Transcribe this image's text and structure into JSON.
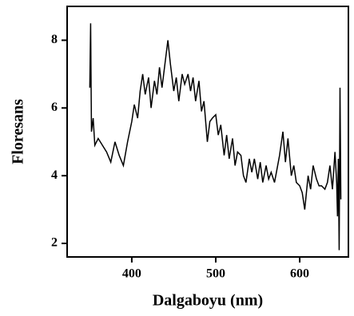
{
  "chart_data": {
    "type": "line",
    "xlabel": "Dalgaboyu (nm)",
    "ylabel": "Floresans",
    "xlim": [
      323,
      658
    ],
    "ylim": [
      1.6,
      9.0
    ],
    "xticks": [
      400,
      500,
      600
    ],
    "yticks": [
      2,
      4,
      6,
      8
    ],
    "series": [
      {
        "color": "#000000",
        "x": [
          350,
          351,
          352,
          354,
          356,
          360,
          365,
          370,
          375,
          380,
          385,
          390,
          395,
          400,
          403,
          407,
          410,
          413,
          416,
          420,
          423,
          427,
          430,
          433,
          436,
          440,
          443,
          446,
          450,
          453,
          456,
          460,
          463,
          467,
          470,
          473,
          476,
          480,
          483,
          486,
          490,
          493,
          496,
          500,
          503,
          506,
          510,
          513,
          516,
          520,
          523,
          526,
          530,
          533,
          536,
          540,
          543,
          546,
          550,
          553,
          556,
          560,
          563,
          566,
          570,
          573,
          576,
          580,
          583,
          586,
          590,
          593,
          596,
          600,
          603,
          606,
          610,
          613,
          616,
          620,
          623,
          626,
          630,
          633,
          636,
          639,
          642,
          644,
          645,
          646,
          647,
          648,
          649
        ],
        "values": [
          6.6,
          8.5,
          5.3,
          5.7,
          4.9,
          5.1,
          4.9,
          4.7,
          4.4,
          5.0,
          4.6,
          4.3,
          5.0,
          5.6,
          6.1,
          5.7,
          6.5,
          7.0,
          6.4,
          6.9,
          6.0,
          6.8,
          6.4,
          7.2,
          6.6,
          7.4,
          8.0,
          7.3,
          6.5,
          6.9,
          6.2,
          7.0,
          6.7,
          7.0,
          6.5,
          6.9,
          6.2,
          6.8,
          5.9,
          6.2,
          5.0,
          5.6,
          5.7,
          5.8,
          5.2,
          5.5,
          4.6,
          5.2,
          4.5,
          5.1,
          4.3,
          4.7,
          4.6,
          4.0,
          3.8,
          4.5,
          4.1,
          4.5,
          3.9,
          4.4,
          3.8,
          4.3,
          3.9,
          4.1,
          3.8,
          4.2,
          4.6,
          5.3,
          4.4,
          5.1,
          4.0,
          4.3,
          3.8,
          3.7,
          3.5,
          3.0,
          4.0,
          3.6,
          4.3,
          3.9,
          3.7,
          3.7,
          3.6,
          3.8,
          4.3,
          3.6,
          4.7,
          3.8,
          2.8,
          4.5,
          1.8,
          6.6,
          3.3
        ]
      }
    ]
  }
}
